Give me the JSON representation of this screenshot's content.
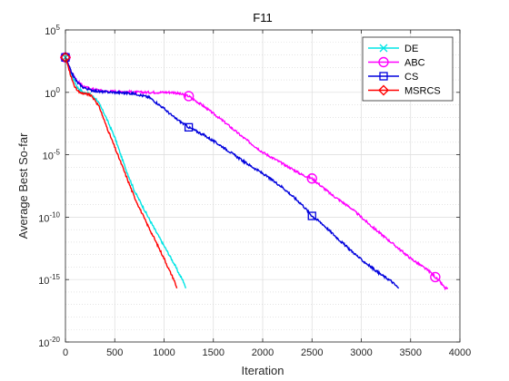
{
  "chart_data": {
    "type": "line",
    "title": "F11",
    "xlabel": "Iteration",
    "ylabel": "Average Best So-far",
    "xlim": [
      0,
      4000
    ],
    "ylim_exp": [
      -20,
      5
    ],
    "yscale": "log",
    "grid": true,
    "legend_position": "top-right",
    "x_ticks": [
      "0",
      "500",
      "1000",
      "1500",
      "2000",
      "2500",
      "3000",
      "3500",
      "4000"
    ],
    "y_ticks": [
      {
        "base": "10",
        "exp": "-20"
      },
      {
        "base": "10",
        "exp": "-15"
      },
      {
        "base": "10",
        "exp": "-10"
      },
      {
        "base": "10",
        "exp": "-5"
      },
      {
        "base": "10",
        "exp": "0"
      },
      {
        "base": "10",
        "exp": "5"
      }
    ],
    "series": [
      {
        "name": "DE",
        "color": "#00e5e5",
        "marker": "x",
        "x": [
          0,
          60,
          120,
          180,
          250,
          320,
          400,
          500,
          600,
          700,
          800,
          900,
          1000,
          1100,
          1150,
          1200,
          1220
        ],
        "log10y": [
          2.8,
          1.5,
          0.4,
          0.0,
          -0.15,
          -0.6,
          -1.8,
          -3.6,
          -5.9,
          -7.9,
          -9.4,
          -10.9,
          -12.3,
          -13.7,
          -14.5,
          -15.2,
          -15.7
        ]
      },
      {
        "name": "ABC",
        "color": "#ff00ff",
        "marker": "o",
        "x": [
          0,
          60,
          120,
          180,
          250,
          400,
          600,
          800,
          1000,
          1100,
          1250,
          1400,
          1600,
          1800,
          2000,
          2200,
          2400,
          2500,
          2700,
          2900,
          3100,
          3300,
          3500,
          3700,
          3750,
          3800,
          3850,
          3880
        ],
        "log10y": [
          2.8,
          1.6,
          0.9,
          0.5,
          0.3,
          0.1,
          0.05,
          0.0,
          0.0,
          0.0,
          -0.3,
          -1.1,
          -2.3,
          -3.6,
          -4.8,
          -5.7,
          -6.6,
          -6.9,
          -8.2,
          -9.3,
          -10.7,
          -12.0,
          -13.3,
          -14.4,
          -14.8,
          -15.2,
          -15.7,
          -15.7
        ]
      },
      {
        "name": "CS",
        "color": "#0000dd",
        "marker": "s",
        "x": [
          0,
          60,
          120,
          180,
          250,
          350,
          500,
          700,
          850,
          1000,
          1100,
          1250,
          1400,
          1600,
          1800,
          2000,
          2200,
          2400,
          2500,
          2600,
          2800,
          3000,
          3200,
          3300,
          3380
        ],
        "log10y": [
          2.8,
          1.6,
          0.8,
          0.4,
          0.2,
          0.05,
          0.0,
          -0.1,
          -0.4,
          -1.3,
          -2.0,
          -2.8,
          -3.4,
          -4.4,
          -5.5,
          -6.5,
          -7.6,
          -9.0,
          -9.9,
          -10.5,
          -12.0,
          -13.4,
          -14.6,
          -15.1,
          -15.7
        ]
      },
      {
        "name": "MSRCS",
        "color": "#ff0000",
        "marker": "d",
        "x": [
          0,
          40,
          80,
          120,
          160,
          200,
          250,
          300,
          350,
          400,
          500,
          600,
          700,
          800,
          900,
          1000,
          1050,
          1100,
          1130
        ],
        "log10y": [
          2.8,
          1.7,
          0.7,
          0.1,
          -0.05,
          -0.1,
          -0.2,
          -0.6,
          -1.3,
          -2.4,
          -4.4,
          -6.4,
          -8.4,
          -10.1,
          -11.7,
          -13.3,
          -14.2,
          -15.0,
          -15.7
        ]
      }
    ]
  }
}
